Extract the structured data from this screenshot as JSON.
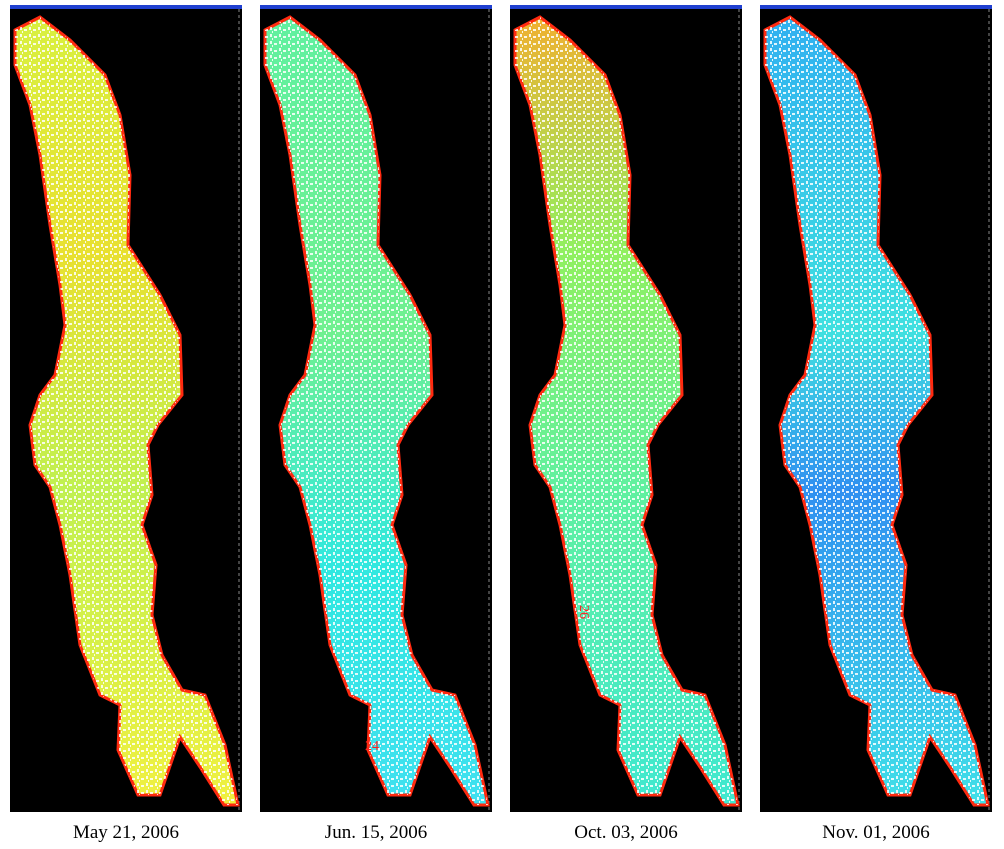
{
  "panels": [
    {
      "caption": "May 21, 2006"
    },
    {
      "caption": "Jun. 15, 2006",
      "label": "24"
    },
    {
      "caption": "Oct. 03, 2006",
      "label": "26"
    },
    {
      "caption": "Nov. 01, 2006"
    }
  ]
}
